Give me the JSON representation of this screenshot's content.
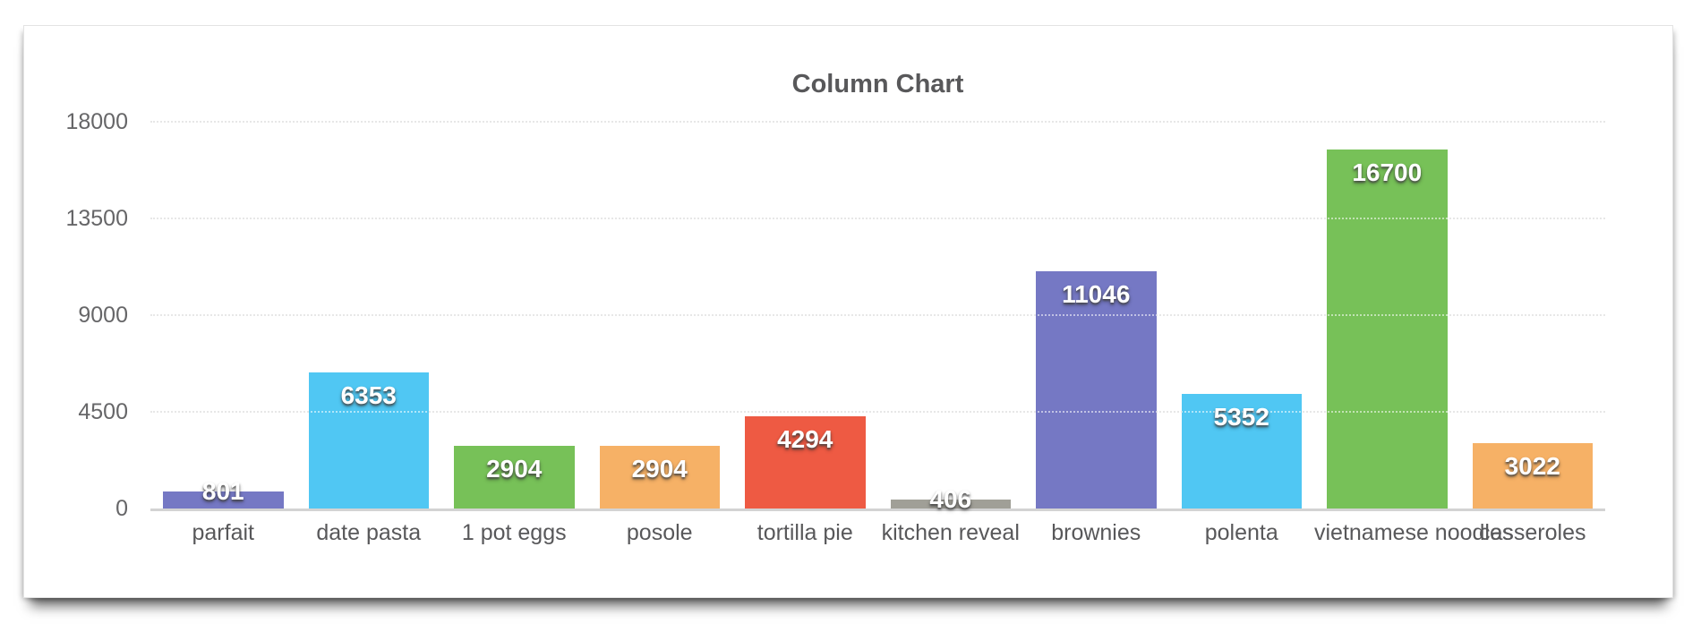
{
  "chart_data": {
    "type": "bar",
    "title": "Column Chart",
    "categories": [
      "parfait",
      "date pasta",
      "1 pot eggs",
      "posole",
      "tortilla pie",
      "kitchen reveal",
      "brownies",
      "polenta",
      "vietnamese noodles",
      "casseroles"
    ],
    "values": [
      801,
      6353,
      2904,
      2904,
      4294,
      406,
      11046,
      5352,
      16700,
      3022
    ],
    "value_labels": [
      "801",
      "6353",
      "2904",
      "2904",
      "4294",
      "406",
      "11046",
      "5352",
      "16700",
      "3022"
    ],
    "bar_colors": [
      "#7578C4",
      "#50C7F3",
      "#77C158",
      "#F6B166",
      "#EE5A43",
      "#A09F97",
      "#7578C4",
      "#50C7F3",
      "#77C158",
      "#F6B166"
    ],
    "y_ticks": [
      "0",
      "4500",
      "9000",
      "13500",
      "18000"
    ],
    "ylim": [
      0,
      18000
    ],
    "xlabel": "",
    "ylabel": "",
    "grid": "horizontal-dotted",
    "legend": "none",
    "value_label_color": "#ffffff",
    "axis_text_color": "#58585a",
    "title_color": "#58585a"
  }
}
